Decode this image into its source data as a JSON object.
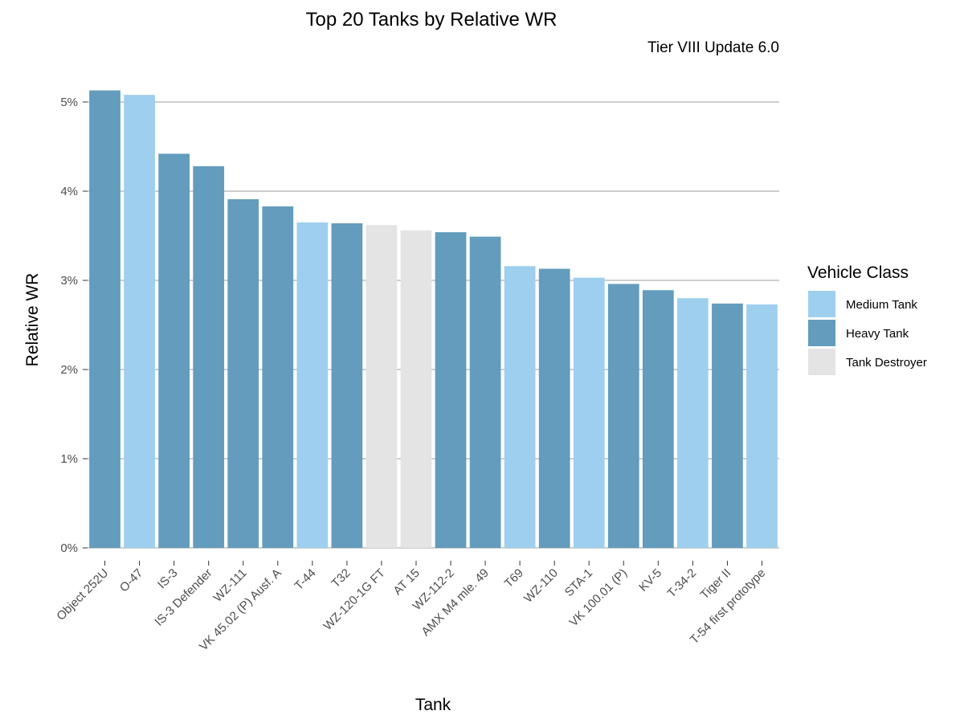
{
  "chart_data": {
    "type": "bar",
    "title": "Top 20 Tanks by Relative WR",
    "subtitle": "Tier VIII Update 6.0",
    "xlabel": "Tank",
    "ylabel": "Relative WR",
    "ylim": [
      0,
      5.3
    ],
    "yticks": [
      0,
      1,
      2,
      3,
      4,
      5
    ],
    "ytick_labels": [
      "0%",
      "1%",
      "2%",
      "3%",
      "4%",
      "5%"
    ],
    "grid": "horizontal",
    "legend_position": "right",
    "legend": {
      "title": "Vehicle Class",
      "entries": [
        {
          "name": "Medium Tank",
          "color": "#9ecfef"
        },
        {
          "name": "Heavy Tank",
          "color": "#639cbc"
        },
        {
          "name": "Tank Destroyer",
          "color": "#e4e4e4"
        }
      ]
    },
    "categories": [
      "Object 252U",
      "O-47",
      "IS-3",
      "IS-3 Defender",
      "WZ-111",
      "VK 45.02 (P) Ausf. A",
      "T-44",
      "T32",
      "WZ-120-1G FT",
      "AT 15",
      "WZ-112-2",
      "AMX M4 mle. 49",
      "T69",
      "WZ-110",
      "STA-1",
      "VK 100.01 (P)",
      "KV-5",
      "T-34-2",
      "Tiger II",
      "T-54 first prototype"
    ],
    "values": [
      5.13,
      5.08,
      4.42,
      4.28,
      3.91,
      3.83,
      3.65,
      3.64,
      3.62,
      3.56,
      3.54,
      3.49,
      3.16,
      3.13,
      3.03,
      2.96,
      2.89,
      2.8,
      2.74,
      2.73
    ],
    "classes": [
      "Heavy Tank",
      "Medium Tank",
      "Heavy Tank",
      "Heavy Tank",
      "Heavy Tank",
      "Heavy Tank",
      "Medium Tank",
      "Heavy Tank",
      "Tank Destroyer",
      "Tank Destroyer",
      "Heavy Tank",
      "Heavy Tank",
      "Medium Tank",
      "Heavy Tank",
      "Medium Tank",
      "Heavy Tank",
      "Heavy Tank",
      "Medium Tank",
      "Heavy Tank",
      "Medium Tank"
    ]
  }
}
